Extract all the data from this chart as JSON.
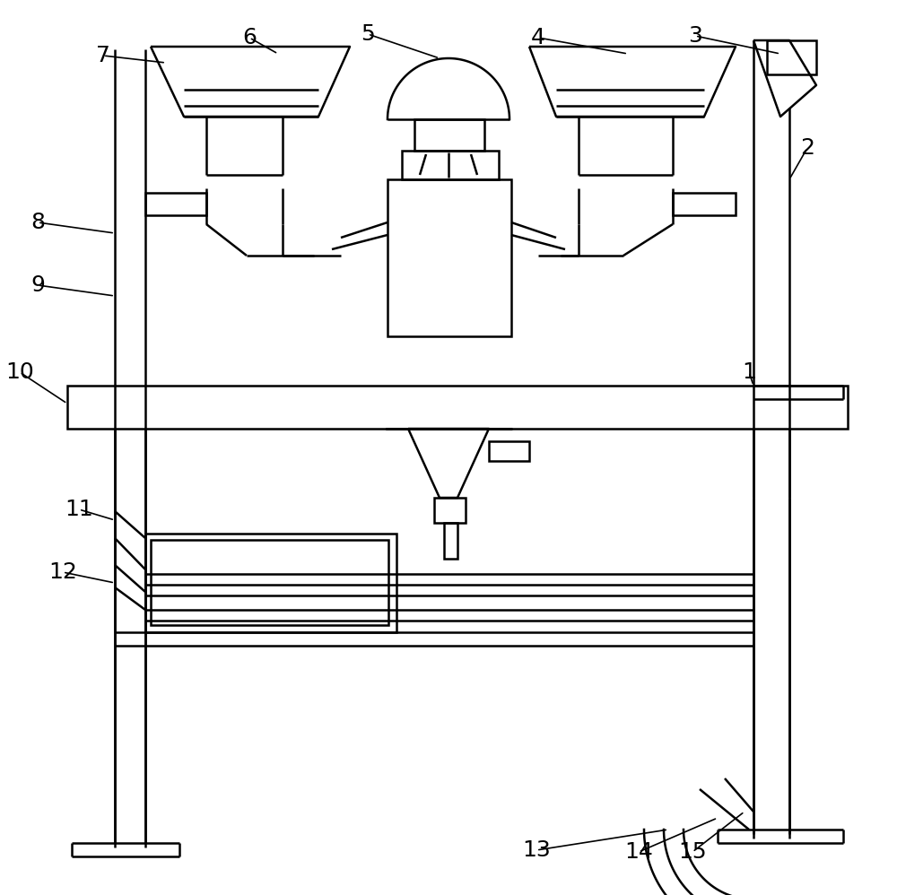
{
  "bg_color": "#ffffff",
  "lc": "#000000",
  "lw": 1.8,
  "fig_w": 10.0,
  "fig_h": 9.98,
  "dpi": 100
}
